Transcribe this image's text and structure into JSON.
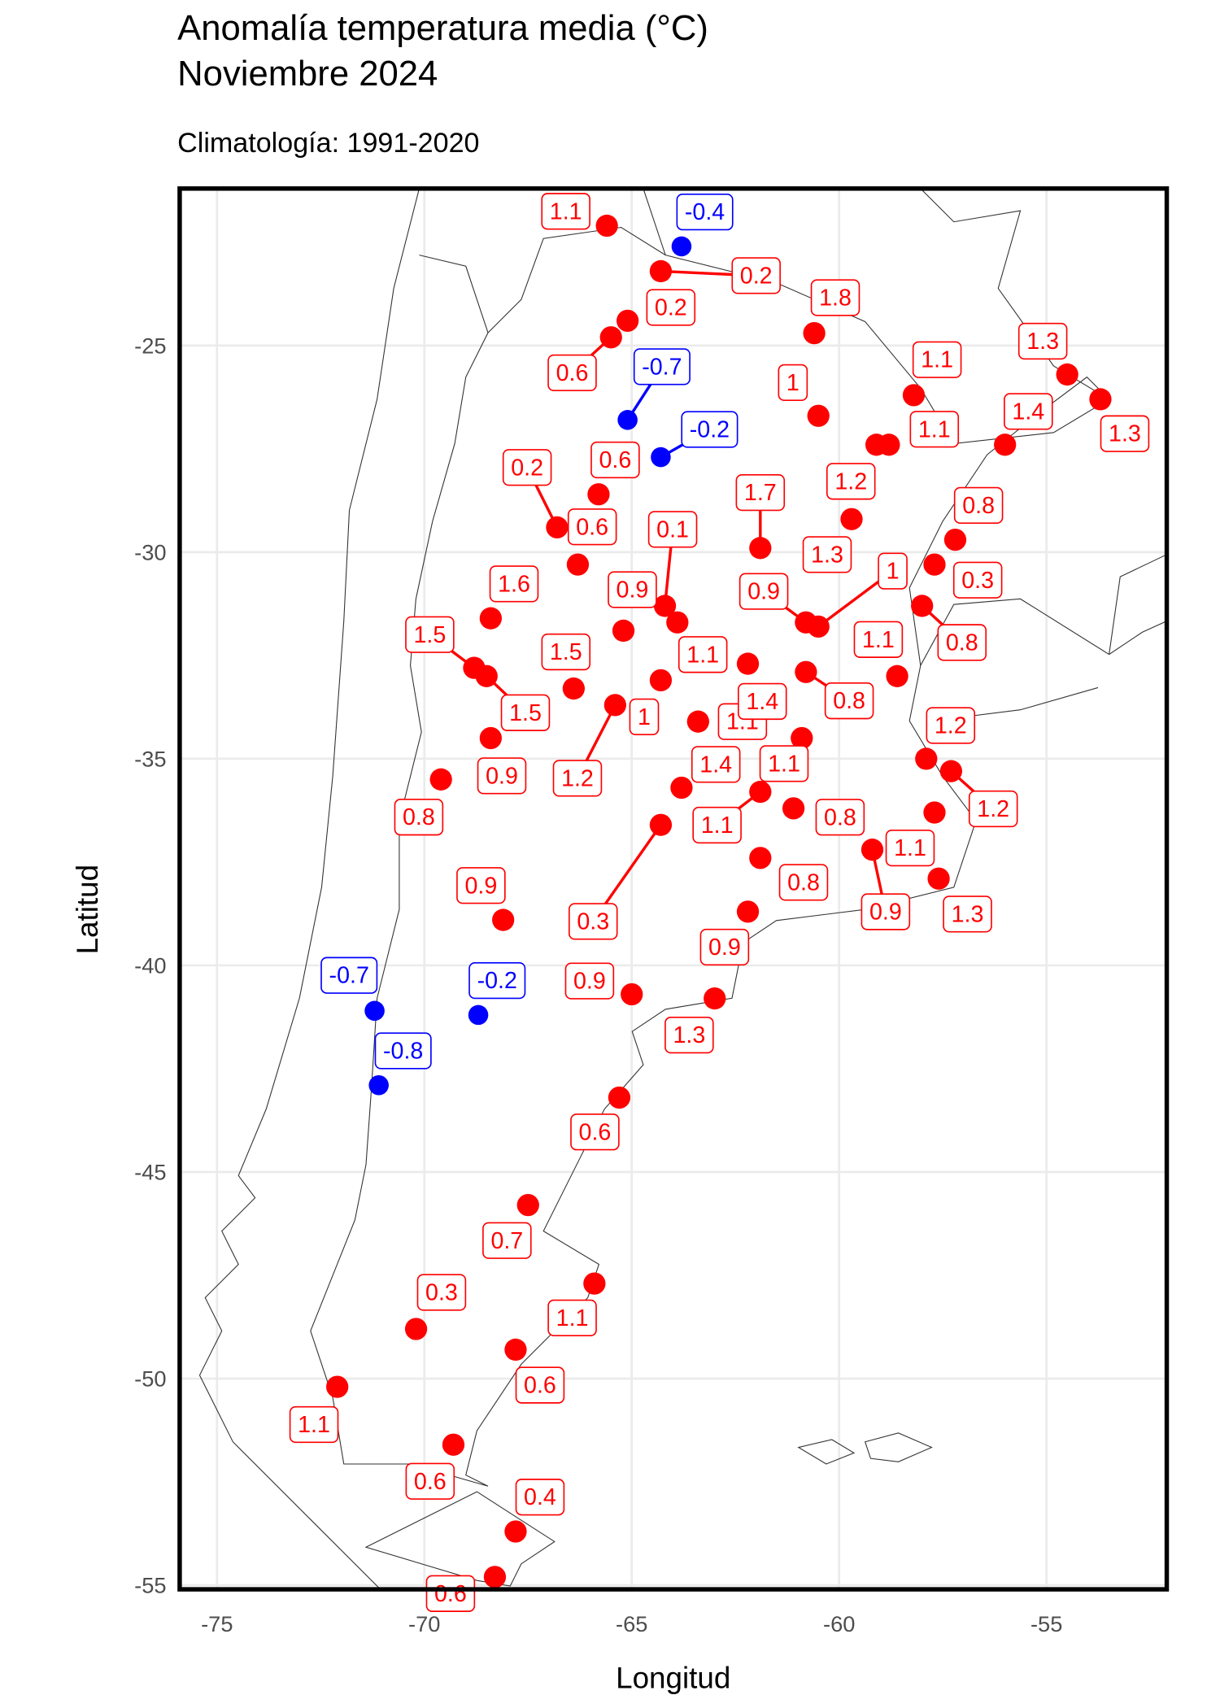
{
  "chart_data": {
    "type": "scatter",
    "title": [
      "Anomalía temperatura media (°C)",
      "Noviembre 2024"
    ],
    "subtitle": "Climatología: 1991-2020",
    "x_label": "Longitud",
    "y_label": "Latitud",
    "color_positive": "#ff0000",
    "color_negative": "#0000ff",
    "grid": true,
    "xlim": [
      -75.9,
      -52.1
    ],
    "ylim": [
      -55.1,
      -21.2
    ],
    "xticks": [
      -75,
      -70,
      -65,
      -60,
      -55
    ],
    "yticks": [
      -55,
      -50,
      -45,
      -40,
      -35,
      -30,
      -25
    ],
    "x": [
      -65.6,
      -63.8,
      -64.3,
      -65.1,
      -65.5,
      -60.6,
      -65.1,
      -64.3,
      -60.5,
      -58.2,
      -59.1,
      -58.8,
      -54.5,
      -53.7,
      -56.0,
      -65.8,
      -66.8,
      -66.3,
      -61.9,
      -59.7,
      -57.2,
      -57.7,
      -58.0,
      -64.2,
      -63.9,
      -60.8,
      -60.5,
      -68.4,
      -68.8,
      -68.5,
      -68.4,
      -69.6,
      -65.2,
      -66.4,
      -64.3,
      -65.4,
      -63.4,
      -62.2,
      -60.8,
      -58.6,
      -60.9,
      -61.9,
      -63.8,
      -64.3,
      -61.1,
      -61.9,
      -62.2,
      -59.2,
      -57.7,
      -57.9,
      -57.3,
      -57.6,
      -68.1,
      -65.0,
      -63.0,
      -71.2,
      -68.7,
      -71.1,
      -65.3,
      -67.5,
      -65.9,
      -70.2,
      -67.8,
      -72.1,
      -69.3,
      -67.8,
      -68.3
    ],
    "y": [
      -22.1,
      -22.6,
      -23.2,
      -24.4,
      -24.8,
      -24.7,
      -26.8,
      -27.7,
      -26.7,
      -26.2,
      -27.4,
      -27.4,
      -25.7,
      -26.3,
      -27.4,
      -28.6,
      -29.4,
      -30.3,
      -29.9,
      -29.2,
      -29.7,
      -30.3,
      -31.3,
      -31.3,
      -31.7,
      -31.7,
      -31.8,
      -31.6,
      -32.8,
      -33.0,
      -34.5,
      -35.5,
      -31.9,
      -33.3,
      -33.1,
      -33.7,
      -34.1,
      -32.7,
      -32.9,
      -33.0,
      -34.5,
      -35.8,
      -35.7,
      -36.6,
      -36.2,
      -37.4,
      -38.7,
      -37.2,
      -36.3,
      -35.0,
      -35.3,
      -37.9,
      -38.9,
      -40.7,
      -40.8,
      -41.1,
      -41.2,
      -42.9,
      -43.2,
      -45.8,
      -47.7,
      -48.8,
      -49.3,
      -50.2,
      -51.6,
      -53.7,
      -54.8
    ],
    "values": [
      1.1,
      -0.4,
      0.2,
      0.2,
      0.6,
      1.8,
      -0.7,
      -0.2,
      1,
      1.1,
      1.2,
      1.1,
      1.3,
      1.3,
      1.4,
      0.6,
      0.2,
      0.6,
      1.7,
      1.3,
      0.8,
      0.3,
      0.8,
      0.1,
      1.1,
      0.9,
      1,
      1.6,
      1.5,
      1.5,
      0.9,
      0.8,
      0.9,
      1.5,
      1,
      1.2,
      1.1,
      1.4,
      0.8,
      1.1,
      1.1,
      1.1,
      1.4,
      0.3,
      0.8,
      0.8,
      0.9,
      0.9,
      1.1,
      1.2,
      1.2,
      1.3,
      0.9,
      0.9,
      1.3,
      -0.7,
      -0.2,
      -0.8,
      0.6,
      0.7,
      1.1,
      0.3,
      0.6,
      1.1,
      0.6,
      0.4,
      0.6
    ]
  }
}
